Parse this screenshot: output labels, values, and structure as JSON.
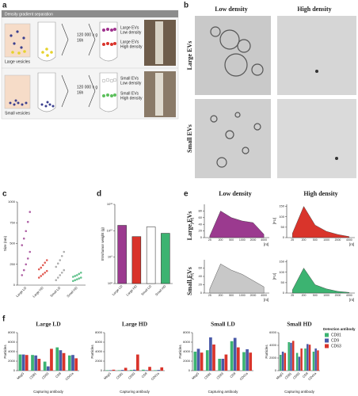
{
  "panel_labels": [
    "a",
    "b",
    "c",
    "d",
    "e",
    "f"
  ],
  "a": {
    "header": "Density gradient separation",
    "large_vesicles": "Large vesicles",
    "small_vesicles": "Small vesicles",
    "spin_top": "120 000 x g",
    "time_top": "16h",
    "spin_bottom": "120 000 x g",
    "time_bottom": "16h",
    "large_ld": [
      "Large EVs",
      "Low density"
    ],
    "large_hd": [
      "Large EVs",
      "High density"
    ],
    "small_ld": [
      "Small EVs",
      "Low density"
    ],
    "small_hd": [
      "Small EVs",
      "High density"
    ]
  },
  "b": {
    "col_headers": [
      "Low density",
      "High density"
    ],
    "row_labels": [
      "Large EVs",
      "Small EVs"
    ]
  },
  "e": {
    "col_headers": [
      "Low density",
      "High density"
    ],
    "row_labels": [
      "Large EVs",
      "Small EVs"
    ]
  },
  "f_legend": {
    "title": "Detection antibody",
    "items": [
      {
        "name": "CD81",
        "color": "#3cb371"
      },
      {
        "name": "CD9",
        "color": "#4a5aa8"
      },
      {
        "name": "CD63",
        "color": "#d9342b"
      }
    ]
  },
  "chart_data": [
    {
      "type": "strip",
      "ylabel": "Size (nm)",
      "categories": [
        "Large LD",
        "Large HD",
        "Small LD",
        "Small HD"
      ],
      "colors": [
        "#9b3a8f",
        "#d9342b",
        "#9a9a9a",
        "#3cb371"
      ],
      "values": [
        [
          120,
          180,
          250,
          320,
          400,
          480,
          560,
          650,
          760,
          880
        ],
        [
          90,
          110,
          130,
          150,
          170,
          190,
          210,
          240,
          270,
          300
        ],
        [
          60,
          90,
          120,
          150,
          180,
          220,
          260,
          300,
          350,
          400
        ],
        [
          50,
          60,
          70,
          80,
          90,
          100,
          110,
          120,
          135,
          150
        ]
      ],
      "ylim": [
        0,
        1000
      ],
      "yticks": [
        0,
        250,
        500,
        750,
        1000
      ]
    },
    {
      "type": "bar",
      "ylabel": "EVs/tumor weight (g)",
      "log_scale": true,
      "categories": [
        "Large LD",
        "Large HD",
        "Small LD",
        "Small HD"
      ],
      "colors": [
        "#9b3a8f",
        "#d9342b",
        "#ffffff",
        "#3cb371"
      ],
      "values": [
        16000000000,
        6000000000,
        14000000000,
        8000000000
      ],
      "ylim": [
        100000000,
        100000000000
      ],
      "yticks": [
        {
          "value": 100000000,
          "label": "10⁸"
        },
        {
          "value": 1000000000,
          "label": "10⁹"
        },
        {
          "value": 10000000000,
          "label": "10¹⁰"
        },
        {
          "value": 100000000000,
          "label": "10¹¹"
        }
      ]
    },
    {
      "type": "area",
      "ylabel": "[FU]",
      "xlabel": "[nt]",
      "color": "#9b3a8f",
      "categories": [
        "25",
        "200",
        "500",
        "1000",
        "2000",
        "4000"
      ],
      "values": [
        5,
        80,
        60,
        50,
        45,
        10
      ],
      "ylim": [
        0,
        100
      ],
      "yticks": [
        0,
        20,
        40,
        60,
        80
      ]
    },
    {
      "type": "area",
      "ylabel": "[FU]",
      "xlabel": "[nt]",
      "color": "#d9342b",
      "categories": [
        "25",
        "200",
        "500",
        "1000",
        "2000",
        "4000"
      ],
      "values": [
        20,
        150,
        60,
        30,
        15,
        5
      ],
      "ylim": [
        0,
        160
      ],
      "yticks": [
        0,
        50,
        100,
        150
      ]
    },
    {
      "type": "area",
      "ylabel": "[FU]",
      "xlabel": "[nt]",
      "color": "#c8c8c8",
      "categories": [
        "25",
        "200",
        "500",
        "1000",
        "2000",
        "4000"
      ],
      "values": [
        10,
        70,
        55,
        45,
        30,
        15
      ],
      "ylim": [
        0,
        80
      ],
      "yticks": [
        0,
        20,
        40,
        60
      ]
    },
    {
      "type": "area",
      "ylabel": "[FU]",
      "xlabel": "[nt]",
      "color": "#3cb371",
      "categories": [
        "25",
        "200",
        "500",
        "1000",
        "2000",
        "4000"
      ],
      "values": [
        15,
        120,
        40,
        20,
        8,
        3
      ],
      "ylim": [
        0,
        160
      ],
      "yticks": [
        0,
        50,
        100,
        150
      ]
    },
    {
      "type": "bar",
      "title": "Large LD",
      "ylabel": "Particles",
      "xlabel": "Capturing antibody",
      "categories": [
        "MsgG",
        "CD81",
        "CD63",
        "CD9",
        "CD41a"
      ],
      "series": [
        {
          "color": "#3cb371",
          "values": [
            3400,
            3300,
            1900,
            4900,
            3200
          ]
        },
        {
          "color": "#4a5aa8",
          "values": [
            3400,
            3200,
            900,
            4300,
            3300
          ]
        },
        {
          "color": "#d9342b",
          "values": [
            3300,
            2500,
            4600,
            3700,
            2600
          ]
        }
      ],
      "ylim": [
        0,
        8000
      ],
      "yticks": [
        0,
        2000,
        4000,
        6000,
        8000
      ]
    },
    {
      "type": "bar",
      "title": "Large HD",
      "ylabel": "Particles",
      "xlabel": "Capturing antibody",
      "categories": [
        "MsgG",
        "CD81",
        "CD63",
        "CD9",
        "CD41a"
      ],
      "series": [
        {
          "color": "#3cb371",
          "values": [
            100,
            100,
            150,
            200,
            100
          ]
        },
        {
          "color": "#4a5aa8",
          "values": [
            100,
            150,
            200,
            100,
            150
          ]
        },
        {
          "color": "#d9342b",
          "values": [
            200,
            600,
            3400,
            800,
            700
          ]
        }
      ],
      "ylim": [
        0,
        8000
      ],
      "yticks": [
        0,
        2000,
        4000,
        6000,
        8000
      ]
    },
    {
      "type": "bar",
      "title": "Small LD",
      "ylabel": "Particles",
      "xlabel": "Capturing antibody",
      "categories": [
        "MsgG",
        "CD81",
        "CD63",
        "CD9",
        "CD41a"
      ],
      "series": [
        {
          "color": "#3cb371",
          "values": [
            4000,
            4300,
            2500,
            6200,
            3900
          ]
        },
        {
          "color": "#4a5aa8",
          "values": [
            4600,
            7000,
            2500,
            6900,
            4500
          ]
        },
        {
          "color": "#d9342b",
          "values": [
            3800,
            5500,
            3400,
            4900,
            3800
          ]
        }
      ],
      "ylim": [
        0,
        8000
      ],
      "yticks": [
        0,
        2000,
        4000,
        6000,
        8000
      ]
    },
    {
      "type": "bar",
      "title": "Small HD",
      "ylabel": "Particles",
      "xlabel": "Capturing antibody",
      "categories": [
        "MsgG",
        "CD81",
        "CD63",
        "CD9",
        "CD41a"
      ],
      "series": [
        {
          "color": "#3cb371",
          "values": [
            2500,
            4500,
            2800,
            3500,
            3000
          ]
        },
        {
          "color": "#4a5aa8",
          "values": [
            3000,
            4400,
            2200,
            4200,
            3500
          ]
        },
        {
          "color": "#d9342b",
          "values": [
            2800,
            4700,
            3500,
            4100,
            3200
          ]
        }
      ],
      "ylim": [
        0,
        6000
      ],
      "yticks": [
        0,
        2000,
        4000,
        6000
      ]
    }
  ]
}
